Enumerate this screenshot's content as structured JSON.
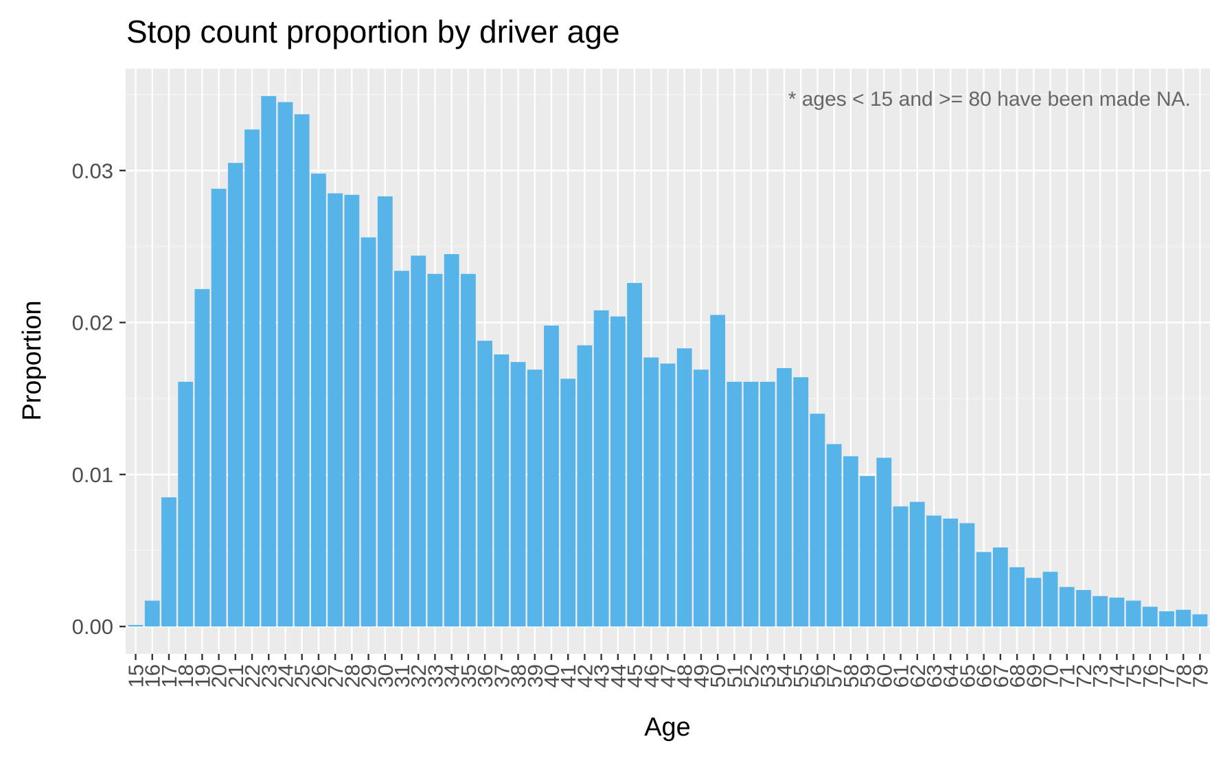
{
  "chart_data": {
    "type": "bar",
    "title": "Stop count proportion by driver age",
    "xlabel": "Age",
    "ylabel": "Proportion",
    "annotation": "* ages < 15 and >= 80 have been made NA.",
    "categories": [
      "15",
      "16",
      "17",
      "18",
      "19",
      "20",
      "21",
      "22",
      "23",
      "24",
      "25",
      "26",
      "27",
      "28",
      "29",
      "30",
      "31",
      "32",
      "33",
      "34",
      "35",
      "36",
      "37",
      "38",
      "39",
      "40",
      "41",
      "42",
      "43",
      "44",
      "45",
      "46",
      "47",
      "48",
      "49",
      "50",
      "51",
      "52",
      "53",
      "54",
      "55",
      "56",
      "57",
      "58",
      "59",
      "60",
      "61",
      "62",
      "63",
      "64",
      "65",
      "66",
      "67",
      "68",
      "69",
      "70",
      "71",
      "72",
      "73",
      "74",
      "75",
      "76",
      "77",
      "78",
      "79"
    ],
    "values": [
      0.0001,
      0.0017,
      0.0085,
      0.0161,
      0.0222,
      0.0288,
      0.0305,
      0.0327,
      0.0349,
      0.0345,
      0.0337,
      0.0298,
      0.0285,
      0.0284,
      0.0256,
      0.0283,
      0.0234,
      0.0244,
      0.0232,
      0.0245,
      0.0232,
      0.0188,
      0.0179,
      0.0174,
      0.0169,
      0.0198,
      0.0163,
      0.0185,
      0.0208,
      0.0204,
      0.0226,
      0.0177,
      0.0173,
      0.0183,
      0.0169,
      0.0205,
      0.0161,
      0.0161,
      0.0161,
      0.017,
      0.0164,
      0.014,
      0.012,
      0.0112,
      0.0099,
      0.0111,
      0.0079,
      0.0082,
      0.0073,
      0.0071,
      0.0068,
      0.0049,
      0.0052,
      0.0039,
      0.0032,
      0.0036,
      0.0026,
      0.0024,
      0.002,
      0.0019,
      0.0017,
      0.0013,
      0.001,
      0.0011,
      0.0008
    ],
    "ylim": [
      -0.0018,
      0.0367
    ],
    "yticks": [
      0.0,
      0.01,
      0.02,
      0.03
    ],
    "ytick_labels": [
      "0.00",
      "0.01",
      "0.02",
      "0.03"
    ],
    "grid": true,
    "legend": "none",
    "colors": {
      "bar": "#56B4E9",
      "panel_bg": "#EBEBEB",
      "grid_major": "#FFFFFF",
      "grid_minor": "#F5F5F5",
      "axis_text": "#4D4D4D",
      "tick": "#333333",
      "title": "#000000",
      "annotation": "#666666"
    }
  }
}
